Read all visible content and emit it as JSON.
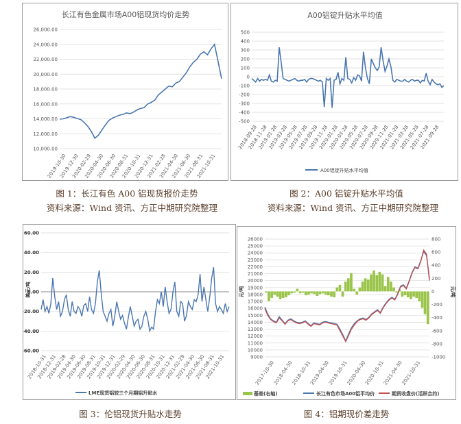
{
  "captions": {
    "fig1": "图 1：长江有色 A00 铝现货报价走势",
    "fig1_source": "资料来源：Wind 资讯、方正中期研究院整理",
    "fig2": "图 2：A00 铝锭升贴水平均值",
    "fig2_source": "资料来源：Wind 资讯、方正中期研究院整理",
    "fig3": "图 3：伦铝现货升贴水走势",
    "fig4": "图 4：铝期现价差走势"
  },
  "chart_data": [
    {
      "type": "line",
      "title": "长江有色金属市场A00铝现货均价走势",
      "ylim": [
        10000,
        26000
      ],
      "yticks": [
        "10,000.00",
        "12,000.00",
        "14,000.00",
        "16,000.00",
        "18,000.00",
        "20,000.00",
        "22,000.00",
        "24,000.00",
        "26,000.00"
      ],
      "xticks": [
        "2019-10-30",
        "2019-12-30",
        "2020-02-29",
        "2020-04-30",
        "2020-06-30",
        "2020-08-31",
        "2020-10-31",
        "2020-12-31",
        "2021-02-28",
        "2021-04-30",
        "2021-06-30",
        "2021-08-31",
        "2021-10-31"
      ],
      "color": "#4a76b0",
      "series": [
        {
          "values": [
            13950,
            14000,
            14150,
            14300,
            14200,
            14050,
            13900,
            13500,
            13000,
            12300,
            11400,
            11800,
            12500,
            13200,
            13800,
            14100,
            14300,
            14500,
            14600,
            14800,
            14700,
            14900,
            15200,
            15400,
            15500,
            16000,
            16200,
            16500,
            17200,
            17600,
            18000,
            18400,
            18300,
            18800,
            19000,
            19600,
            20200,
            21000,
            21600,
            22000,
            22700,
            23000,
            22600,
            23400,
            24000,
            21700,
            19400
          ]
        }
      ]
    },
    {
      "type": "line",
      "title": "A00铝锭升贴水平均值",
      "ylim": [
        -500,
        500
      ],
      "yticks": [
        "500",
        "400",
        "300",
        "200",
        "100",
        "0",
        "-100",
        "-200",
        "-300",
        "-400",
        "-500"
      ],
      "xticks": [
        "2018-09-28",
        "2018-11-28",
        "2019-01-28",
        "2019-03-28",
        "2019-05-28",
        "2019-07-28",
        "2019-09-28",
        "2019-11-28",
        "2020-01-28",
        "2020-03-28",
        "2020-05-28",
        "2020-07-28",
        "2020-09-28",
        "2020-11-28",
        "2021-01-28",
        "2021-03-28",
        "2021-05-28",
        "2021-07-28",
        "2021-09-28"
      ],
      "legend": "A00铝锭升贴水平均值",
      "color": "#4a76b0",
      "series": [
        {
          "name": "A00铝锭升贴水平均值",
          "values": [
            -20,
            -40,
            -60,
            -20,
            -50,
            -30,
            -40,
            -30,
            -40,
            20,
            -50,
            -60,
            -40,
            -50,
            330,
            160,
            -20,
            -30,
            -40,
            -50,
            -40,
            -30,
            -20,
            -40,
            -50,
            -40,
            -40,
            -30,
            -60,
            -30,
            -20,
            -20,
            -30,
            -40,
            -50,
            -40,
            -60,
            -340,
            -20,
            -40,
            -20,
            -350,
            -40,
            -30,
            50,
            -80,
            -20,
            -40,
            220,
            -20,
            -30,
            -70,
            -10,
            -40,
            20,
            10,
            -50,
            280,
            100,
            -20,
            -80,
            200,
            150,
            100,
            70,
            110,
            330,
            180,
            60,
            120,
            200,
            110,
            -40,
            -60,
            -30,
            -40,
            -50,
            -50,
            -30,
            -50,
            -60,
            -40,
            -30,
            -50,
            -40,
            -40,
            -70,
            -40,
            -50,
            40,
            -50,
            -90,
            -30,
            -60,
            -80,
            -90,
            -80,
            -120,
            -100
          ]
        }
      ]
    },
    {
      "type": "line",
      "ylabel": "美元/吨",
      "ylim": [
        -60,
        60
      ],
      "yticks": [
        "60.00",
        "40.00",
        "20.00",
        "0.00",
        "-20.00",
        "-40.00",
        "-60.00"
      ],
      "xticks": [
        "2018-10-31",
        "2018-12-31",
        "2019-02-28",
        "2019-04-30",
        "2019-06-30",
        "2019-08-31",
        "2019-10-31",
        "2019-12-31",
        "2020-02-29",
        "2020-04-30",
        "2020-06-30",
        "2020-08-31",
        "2020-10-31",
        "2020-12-31",
        "2021-02-28",
        "2021-04-30",
        "2021-06-30",
        "2021-08-31",
        "2021-10-31"
      ],
      "legend": "LME现货铝较三个月期铝升贴水",
      "color": "#4a76b0",
      "series": [
        {
          "name": "LME现货铝较三个月期铝升贴水",
          "values": [
            -18,
            -8,
            -20,
            -15,
            -22,
            -12,
            14,
            -5,
            -18,
            -10,
            -25,
            -20,
            -8,
            -3,
            -18,
            -25,
            -10,
            -20,
            -22,
            -15,
            -18,
            -25,
            -14,
            -12,
            -20,
            -5,
            -18,
            -22,
            -12,
            10,
            22,
            -2,
            -20,
            -25,
            -30,
            -22,
            -18,
            -35,
            -25,
            -10,
            -20,
            -28,
            -24,
            -32,
            -38,
            -26,
            -15,
            -25,
            -35,
            -30,
            -28,
            -38,
            -35,
            -25,
            -20,
            -28,
            -40,
            -36,
            -38,
            -20,
            -8,
            -12,
            0,
            -15,
            5,
            -10,
            -22,
            -18,
            0,
            10,
            -20,
            -25,
            -10,
            -12,
            -30,
            -24,
            -10,
            -15,
            -18,
            -8,
            -10,
            -3,
            18,
            -10,
            5,
            -8,
            -20,
            -5,
            14,
            25,
            -12,
            -20,
            -15,
            -18,
            -22,
            -12,
            -20,
            -15
          ]
        }
      ]
    },
    {
      "type": "line",
      "ylabel": "元/吨",
      "ylabel_right": "元/吨",
      "ylim": [
        9000,
        26000
      ],
      "ylim_right": [
        -1000,
        800
      ],
      "yticks": [
        "26000",
        "25000",
        "24000",
        "23000",
        "22000",
        "21000",
        "20000",
        "19000",
        "18000",
        "17000",
        "16000",
        "15000",
        "14000",
        "13000",
        "12000",
        "11000",
        "10000",
        "9000"
      ],
      "yticks_right": [
        "800",
        "600",
        "400",
        "200",
        "0",
        "-200",
        "-400",
        "-600",
        "-800",
        "-1000"
      ],
      "xticks": [
        "2017-10-30",
        "2018-04-30",
        "2018-10-31",
        "2019-04-30",
        "2019-10-31",
        "2020-04-30",
        "2020-10-31",
        "2021-04-30",
        "2021-10-31"
      ],
      "legend": [
        "基差(右轴)",
        "长江有色市场A00铝平均价",
        "期货收盘价(活跃合约)"
      ],
      "colors": {
        "basis": "#9ac44a",
        "spot": "#4a76b0",
        "futures": "#c0504d"
      },
      "series": [
        {
          "name": "长江有色市场A00铝平均价",
          "values": [
            16200,
            15200,
            14500,
            14200,
            14000,
            14800,
            14300,
            13800,
            14300,
            14500,
            14200,
            14000,
            13900,
            14000,
            14200,
            13800,
            13500,
            13900,
            13800,
            13700,
            14000,
            14100,
            14000,
            13900,
            13800,
            13700,
            13000,
            12200,
            11300,
            12300,
            13200,
            13800,
            14200,
            14500,
            14600,
            14400,
            14700,
            15200,
            15500,
            15800,
            15400,
            16200,
            16800,
            17300,
            17600,
            17300,
            18100,
            19200,
            19400,
            18900,
            20000,
            21200,
            22000,
            21800,
            22900,
            24200,
            23600,
            20300
          ]
        },
        {
          "name": "期货收盘价(活跃合约)",
          "values": [
            16000,
            15000,
            14400,
            14100,
            13900,
            14600,
            14200,
            13700,
            14200,
            14400,
            14100,
            13900,
            13800,
            13900,
            14100,
            13700,
            13400,
            13800,
            13700,
            13600,
            13900,
            14000,
            13900,
            13800,
            13700,
            13600,
            12800,
            12000,
            11200,
            12100,
            13000,
            13600,
            14100,
            14400,
            14500,
            14300,
            14600,
            15100,
            15400,
            15700,
            15300,
            16100,
            16700,
            17200,
            17500,
            17200,
            18000,
            19100,
            19300,
            18800,
            19900,
            21100,
            21900,
            21700,
            22800,
            24400,
            23800,
            20000
          ]
        },
        {
          "name": "基差(右轴)",
          "values": [
            -20,
            -150,
            -100,
            -50,
            -80,
            -120,
            -100,
            -90,
            -60,
            -30,
            -20,
            40,
            -30,
            -20,
            -60,
            -50,
            -30,
            -40,
            -70,
            -40,
            -30,
            -50,
            -60,
            -80,
            -90,
            60,
            100,
            -80,
            150,
            200,
            280,
            40,
            -50,
            60,
            150,
            200,
            180,
            260,
            320,
            250,
            300,
            260,
            80,
            220,
            150,
            60,
            -20,
            30,
            -80,
            -60,
            -90,
            -120,
            -80,
            -100,
            -150,
            -250,
            -350,
            -500
          ]
        }
      ]
    }
  ]
}
